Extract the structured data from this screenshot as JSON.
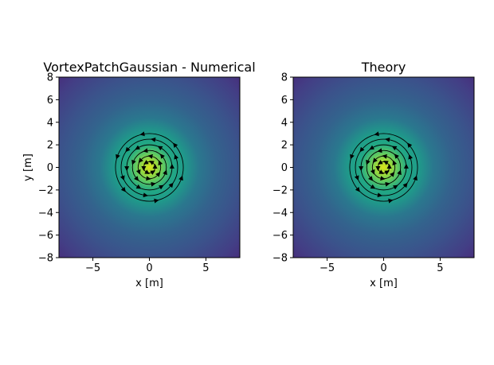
{
  "chart_data": [
    {
      "type": "heatmap",
      "title": "VortexPatchGaussian - Numerical",
      "xlabel": "x [m]",
      "ylabel": "y [m]",
      "xlim": [
        -8,
        8
      ],
      "ylim": [
        -8,
        8
      ],
      "x_ticks": [
        -5,
        0,
        5
      ],
      "y_ticks": [
        -8,
        -6,
        -4,
        -2,
        0,
        2,
        4,
        6,
        8
      ],
      "x_tick_labels": [
        "−5",
        "0",
        "5"
      ],
      "y_tick_labels": [
        "−8",
        "−6",
        "−4",
        "−2",
        "0",
        "2",
        "4",
        "6",
        "8"
      ],
      "field": {
        "center": [
          0,
          0
        ],
        "peak_radius": 0.8,
        "colormap": "viridis"
      },
      "streamlines": {
        "center": [
          0,
          0
        ],
        "radii": [
          0.5,
          1.0,
          1.5,
          2.0,
          2.5,
          3.0
        ],
        "color": "#000000",
        "rotation": "counter-clockwise"
      },
      "grid": false
    },
    {
      "type": "heatmap",
      "title": "Theory",
      "xlabel": "x [m]",
      "ylabel": "",
      "xlim": [
        -8,
        8
      ],
      "ylim": [
        -8,
        8
      ],
      "x_ticks": [
        -5,
        0,
        5
      ],
      "y_ticks": [
        -8,
        -6,
        -4,
        -2,
        0,
        2,
        4,
        6,
        8
      ],
      "x_tick_labels": [
        "−5",
        "0",
        "5"
      ],
      "y_tick_labels": [
        "−8",
        "−6",
        "−4",
        "−2",
        "0",
        "2",
        "4",
        "6",
        "8"
      ],
      "field": {
        "center": [
          0,
          0
        ],
        "peak_radius": 0.8,
        "colormap": "viridis"
      },
      "streamlines": {
        "center": [
          0,
          0
        ],
        "radii": [
          0.5,
          1.0,
          1.5,
          2.0,
          2.5,
          3.0
        ],
        "color": "#000000",
        "rotation": "counter-clockwise"
      },
      "grid": false
    }
  ]
}
